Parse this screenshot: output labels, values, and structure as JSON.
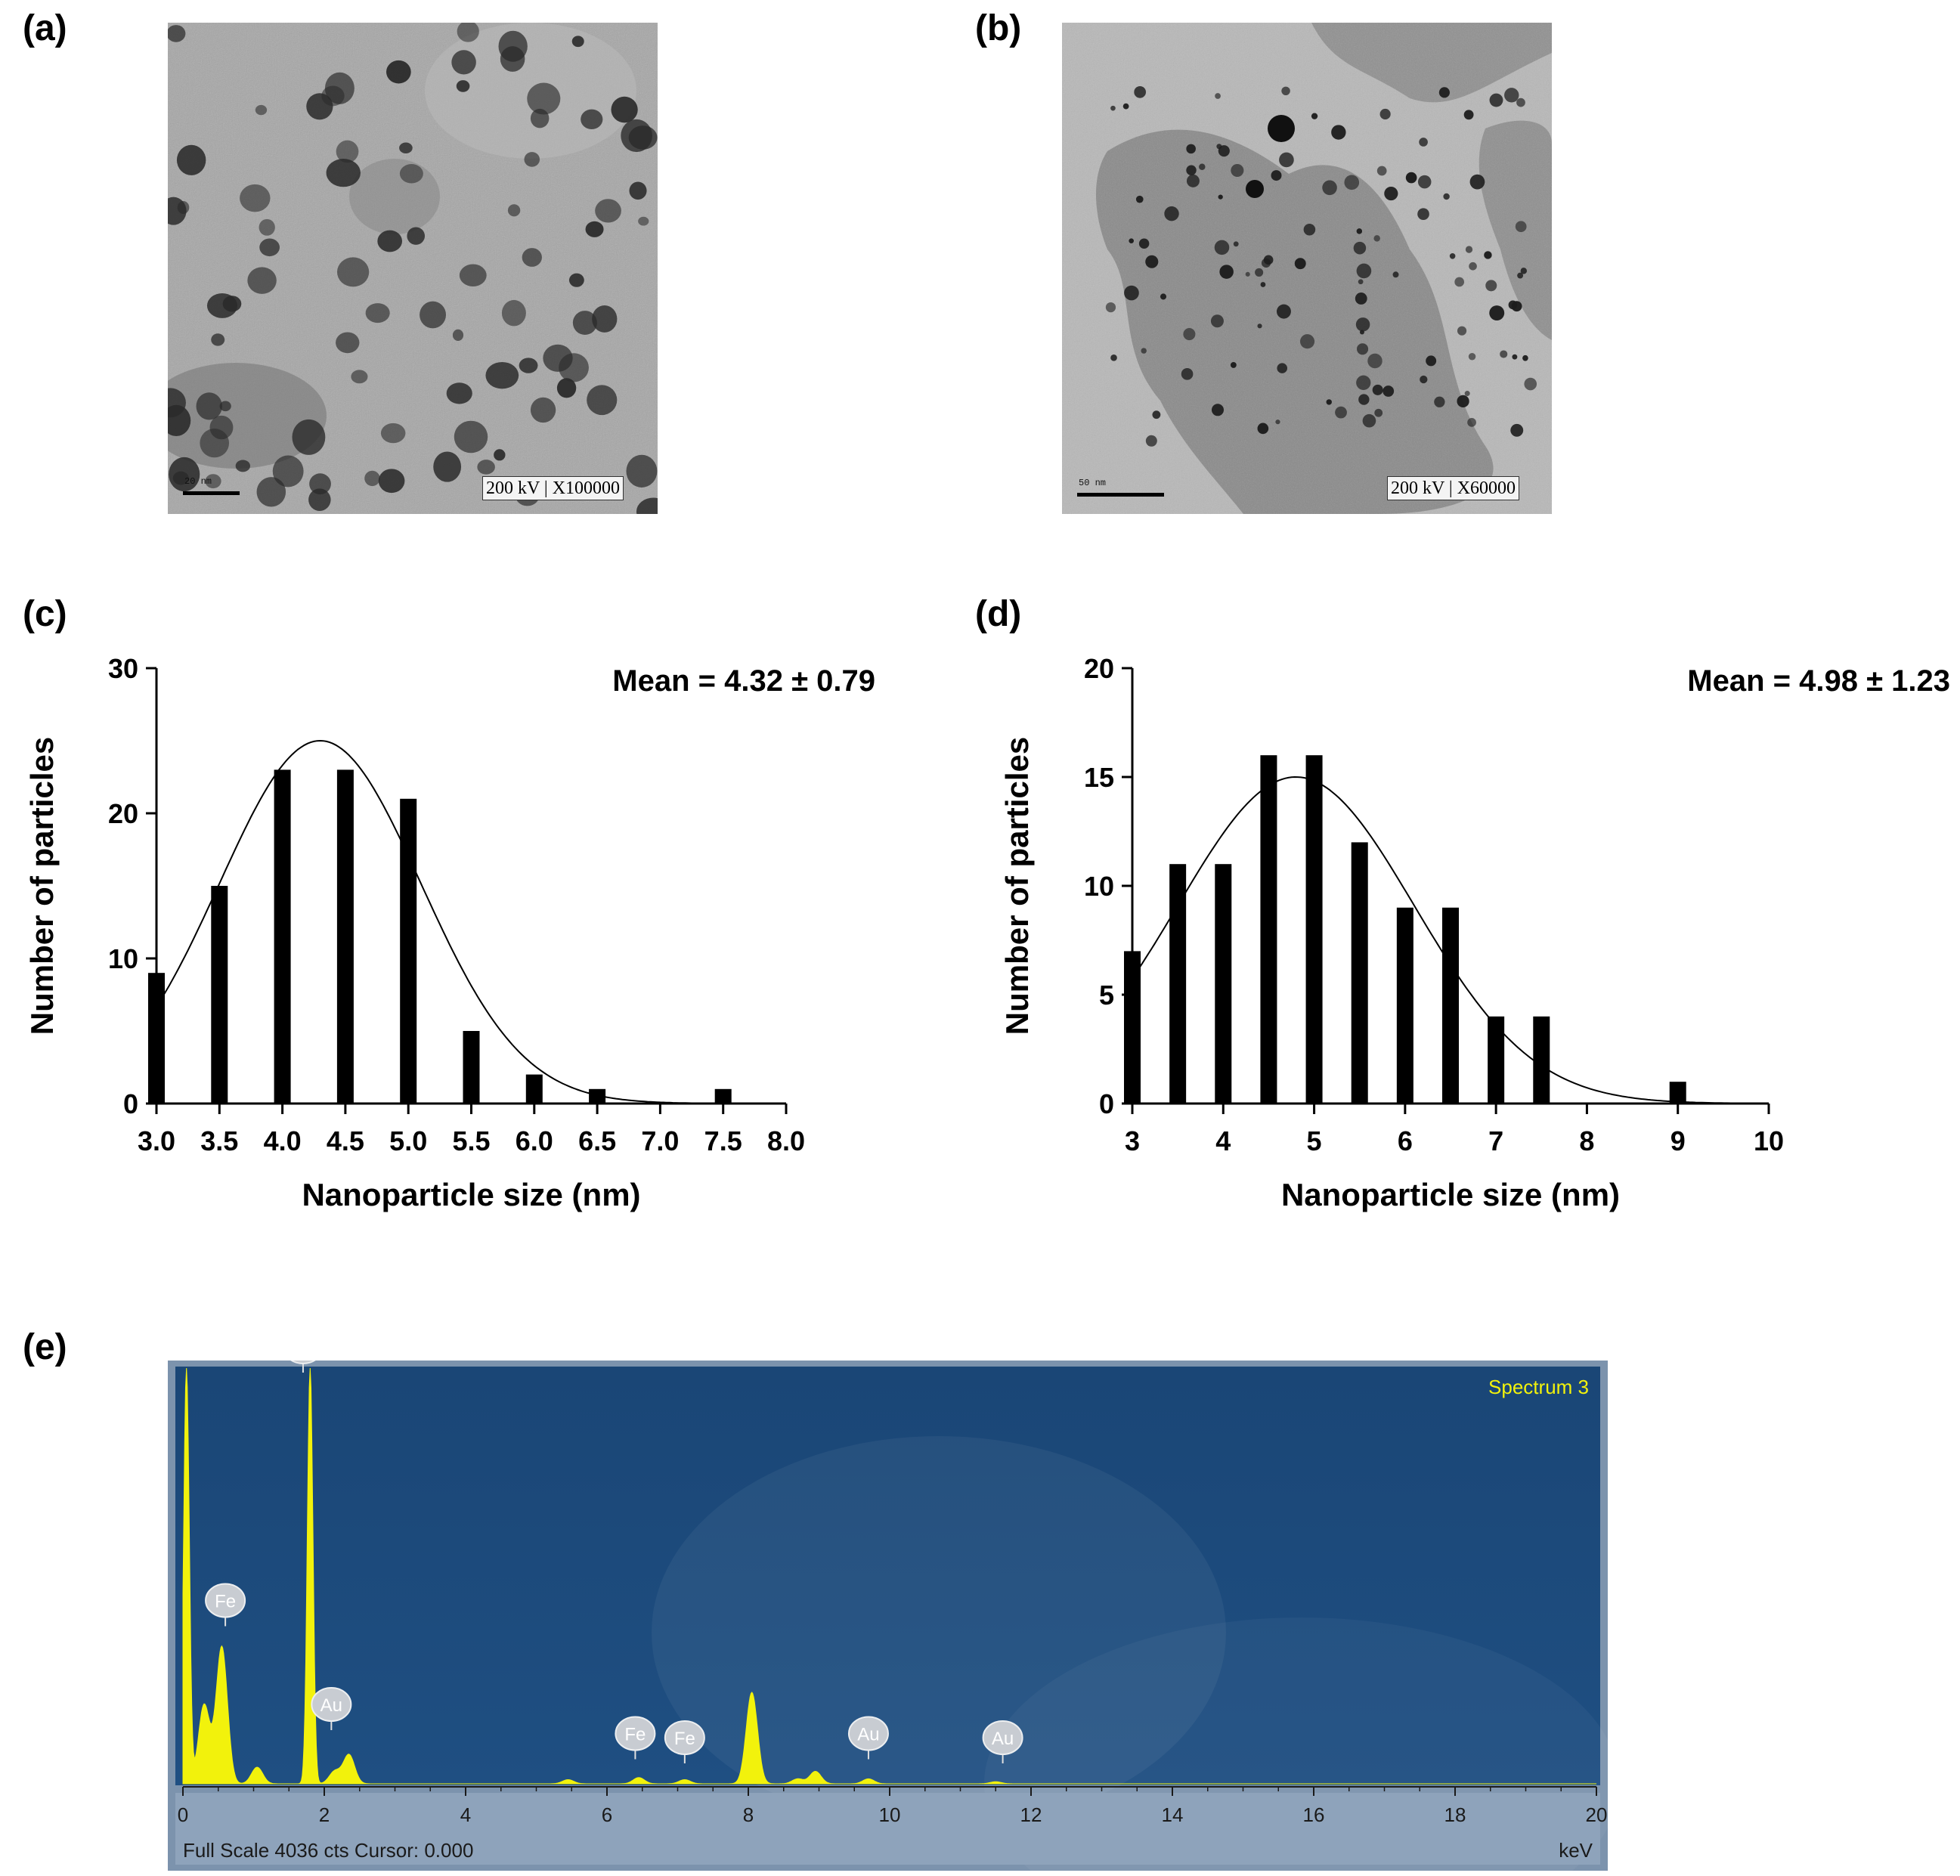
{
  "panels": {
    "a": "(a)",
    "b": "(b)",
    "c": "(c)",
    "d": "(d)",
    "e": "(e)"
  },
  "tem_images": [
    {
      "caption_kv": "200 kV",
      "caption_mag": "X100000",
      "scale_label": "20 nm"
    },
    {
      "caption_kv": "200 kV",
      "caption_mag": "X60000",
      "scale_label": "50 nm"
    }
  ],
  "chart_data": [
    {
      "type": "bar",
      "panel": "c",
      "xlabel": "Nanoparticle size (nm)",
      "ylabel": "Number of particles",
      "annotation": "Mean = 4.32 ± 0.79",
      "xlim": [
        3.0,
        8.0
      ],
      "ylim": [
        0,
        30
      ],
      "xticks": [
        "3.0",
        "3.5",
        "4.0",
        "4.5",
        "5.0",
        "5.5",
        "6.0",
        "6.5",
        "7.0",
        "7.5",
        "8.0"
      ],
      "yticks": [
        0,
        10,
        20,
        30
      ],
      "x": [
        3.0,
        3.5,
        4.0,
        4.5,
        5.0,
        5.5,
        6.0,
        6.5,
        7.0,
        7.5
      ],
      "values": [
        9,
        15,
        23,
        23,
        21,
        5,
        2,
        1,
        0,
        1
      ],
      "fit_curve": {
        "type": "gaussian",
        "mean": 4.3,
        "sd": 0.8,
        "peak": 25
      }
    },
    {
      "type": "bar",
      "panel": "d",
      "xlabel": "Nanoparticle size (nm)",
      "ylabel": "Number of particles",
      "annotation": "Mean = 4.98 ± 1.23",
      "xlim": [
        3,
        10
      ],
      "ylim": [
        0,
        20
      ],
      "xticks": [
        "3",
        "4",
        "5",
        "6",
        "7",
        "8",
        "9",
        "10"
      ],
      "yticks": [
        0,
        5,
        10,
        15,
        20
      ],
      "x": [
        3.0,
        3.5,
        4.0,
        4.5,
        5.0,
        5.5,
        6.0,
        6.5,
        7.0,
        7.5,
        8.0,
        8.5,
        9.0
      ],
      "values": [
        7,
        11,
        11,
        16,
        16,
        12,
        9,
        9,
        4,
        4,
        0,
        0,
        1
      ],
      "fit_curve": {
        "type": "gaussian",
        "mean": 4.8,
        "sd": 1.3,
        "peak": 15
      }
    },
    {
      "type": "area",
      "panel": "e",
      "title": "Spectrum 3",
      "xlabel": "keV",
      "footer": "Full Scale 4036 cts Cursor: 0.000",
      "xlim": [
        0,
        20
      ],
      "xticks": [
        "0",
        "2",
        "4",
        "6",
        "8",
        "10",
        "12",
        "14",
        "16",
        "18",
        "20"
      ],
      "series_color": "#f2f20c",
      "background_color": "#1f4f82",
      "peaks": [
        {
          "x": 0.05,
          "height": 1.0
        },
        {
          "x": 0.3,
          "height": 0.19
        },
        {
          "x": 0.55,
          "height": 0.33
        },
        {
          "x": 1.05,
          "height": 0.04
        },
        {
          "x": 1.8,
          "height": 1.0
        },
        {
          "x": 2.15,
          "height": 0.03
        },
        {
          "x": 2.35,
          "height": 0.07
        },
        {
          "x": 5.45,
          "height": 0.01
        },
        {
          "x": 6.45,
          "height": 0.015
        },
        {
          "x": 7.1,
          "height": 0.01
        },
        {
          "x": 8.05,
          "height": 0.22
        },
        {
          "x": 8.7,
          "height": 0.012
        },
        {
          "x": 8.95,
          "height": 0.03
        },
        {
          "x": 9.7,
          "height": 0.012
        },
        {
          "x": 11.5,
          "height": 0.005
        }
      ],
      "element_labels": [
        {
          "text": "Au",
          "x": 1.7,
          "height": 1.0
        },
        {
          "text": "Fe",
          "x": 0.6,
          "height": 0.39
        },
        {
          "text": "Au",
          "x": 2.1,
          "height": 0.14
        },
        {
          "text": "Fe",
          "x": 6.4,
          "height": 0.07
        },
        {
          "text": "Fe",
          "x": 7.1,
          "height": 0.06
        },
        {
          "text": "Au",
          "x": 9.7,
          "height": 0.07
        },
        {
          "text": "Au",
          "x": 11.6,
          "height": 0.06
        }
      ]
    }
  ]
}
